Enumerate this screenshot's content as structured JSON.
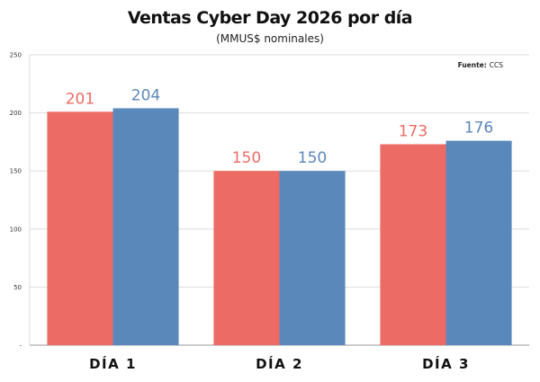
{
  "chart_data": {
    "type": "bar",
    "title": "Ventas Cyber Day 2026 por día",
    "subtitle": "(MMUS$ nominales)",
    "source_label": "Fuente:",
    "source_value": "CCS",
    "categories": [
      "DÍA 1",
      "DÍA 2",
      "DÍA 3"
    ],
    "series": [
      {
        "values": [
          201,
          150,
          173
        ],
        "color": "#ec6b65"
      },
      {
        "values": [
          204,
          150,
          176
        ],
        "color": "#5b88bb"
      }
    ],
    "ylim": [
      0,
      250
    ],
    "yticks": [
      {
        "value": 0,
        "label": "-"
      },
      {
        "value": 50,
        "label": "50"
      },
      {
        "value": 100,
        "label": "100"
      },
      {
        "value": 150,
        "label": "150"
      },
      {
        "value": 200,
        "label": "200"
      },
      {
        "value": 250,
        "label": "250"
      }
    ],
    "grid": true,
    "xlabel": "",
    "ylabel": ""
  }
}
